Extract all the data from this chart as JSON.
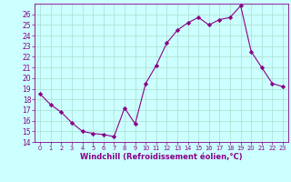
{
  "x": [
    0,
    1,
    2,
    3,
    4,
    5,
    6,
    7,
    8,
    9,
    10,
    11,
    12,
    13,
    14,
    15,
    16,
    17,
    18,
    19,
    20,
    21,
    22,
    23
  ],
  "y": [
    18.5,
    17.5,
    16.8,
    15.8,
    15.0,
    14.8,
    14.7,
    14.5,
    17.2,
    15.7,
    19.5,
    21.2,
    23.3,
    24.5,
    25.2,
    25.7,
    25.0,
    25.5,
    25.7,
    26.8,
    22.5,
    21.0,
    19.5,
    19.2
  ],
  "xlim": [
    -0.5,
    23.5
  ],
  "ylim": [
    14,
    27
  ],
  "yticks": [
    14,
    15,
    16,
    17,
    18,
    19,
    20,
    21,
    22,
    23,
    24,
    25,
    26
  ],
  "xticks": [
    0,
    1,
    2,
    3,
    4,
    5,
    6,
    7,
    8,
    9,
    10,
    11,
    12,
    13,
    14,
    15,
    16,
    17,
    18,
    19,
    20,
    21,
    22,
    23
  ],
  "xlabel": "Windchill (Refroidissement éolien,°C)",
  "line_color": "#880088",
  "marker": "D",
  "marker_size": 2.2,
  "bg_color": "#ccffff",
  "grid_color": "#aaddcc",
  "tick_color": "#880088",
  "label_color": "#880088",
  "ytick_fontsize": 5.5,
  "xtick_fontsize": 4.8,
  "xlabel_fontsize": 6.0
}
